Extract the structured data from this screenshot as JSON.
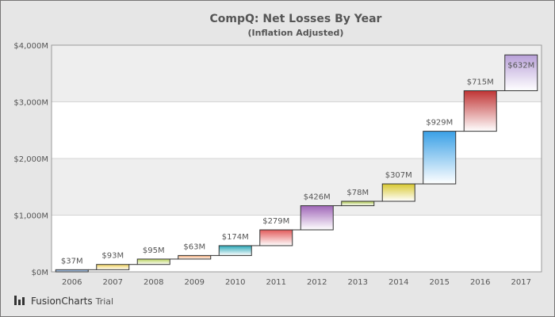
{
  "chart_data": {
    "type": "bar",
    "subtype": "waterfall (cumulative floating columns)",
    "title": "CompQ: Net Losses By Year",
    "subtitle": "(Inflation Adjusted)",
    "xlabel": "",
    "ylabel": "",
    "categories": [
      "2006",
      "2007",
      "2008",
      "2009",
      "2010",
      "2011",
      "2012",
      "2013",
      "2014",
      "2015",
      "2016",
      "2017"
    ],
    "values": [
      37,
      93,
      95,
      63,
      174,
      279,
      426,
      78,
      307,
      929,
      715,
      632
    ],
    "value_labels": [
      "$37M",
      "$93M",
      "$95M",
      "$63M",
      "$174M",
      "$279M",
      "$426M",
      "$78M",
      "$307M",
      "$929M",
      "$715M",
      "$632M"
    ],
    "colors": [
      "#5a8fd0",
      "#f0d15a",
      "#b8d25a",
      "#f4a56e",
      "#2aa8b8",
      "#e25a5a",
      "#a066b8",
      "#a8c24a",
      "#d8c830",
      "#3aa0e6",
      "#c03434",
      "#b8a0d8"
    ],
    "ylim": [
      0,
      4000
    ],
    "yticks": [
      {
        "value": 0,
        "label": "$0M"
      },
      {
        "value": 1000,
        "label": "$1,000M"
      },
      {
        "value": 2000,
        "label": "$2,000M"
      },
      {
        "value": 3000,
        "label": "$3,000M"
      },
      {
        "value": 4000,
        "label": "$4,000M"
      }
    ],
    "grid": true,
    "alternate_bands": true,
    "legend": "none"
  },
  "branding": {
    "logo_text": "FusionCharts",
    "trial_text": "Trial"
  }
}
